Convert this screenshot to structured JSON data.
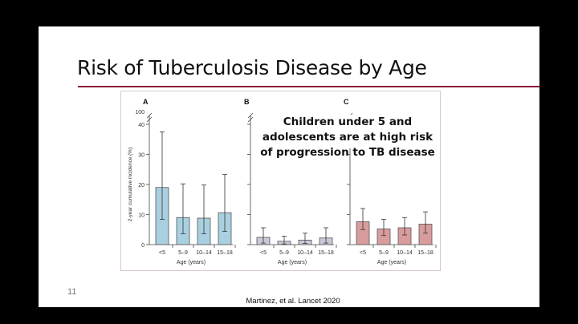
{
  "slide": {
    "title": "Risk of Tuberculosis Disease by Age",
    "callout": [
      "Children under 5 and adolescents are at high risk",
      "of progression to TB disease"
    ],
    "page_number": "11",
    "citation": "Martinez, et al. Lancet 2020",
    "accent_color": "#8b1a3a"
  },
  "chart_data": [
    {
      "type": "bar",
      "panel": "A",
      "categories": [
        "<5",
        "5–9",
        "10–14",
        "15–18"
      ],
      "values": [
        19,
        9,
        8.8,
        10.6
      ],
      "error_low": [
        8.4,
        3.6,
        3.6,
        4.4
      ],
      "error_high": [
        37.5,
        20.2,
        19.8,
        23.3
      ],
      "xlabel": "Age (years)",
      "ylabel": "2-year cumulative incidence (%)",
      "ylim": [
        0,
        40
      ],
      "yticks": [
        "0",
        "10",
        "20",
        "30",
        "40"
      ],
      "axis_break_label": "100",
      "color": "#a9d0e0"
    },
    {
      "type": "bar",
      "panel": "B",
      "categories": [
        "<5",
        "5–9",
        "10–14",
        "15–18"
      ],
      "values": [
        2.4,
        1.1,
        1.5,
        2.2
      ],
      "error_low": [
        0.5,
        0.2,
        0.4,
        0.5
      ],
      "error_high": [
        5.6,
        2.8,
        3.8,
        5.6
      ],
      "xlabel": "Age (years)",
      "ylim": [
        0,
        40
      ],
      "color": "#c9c9d8"
    },
    {
      "type": "bar",
      "panel": "C",
      "categories": [
        "<5",
        "5–9",
        "10–14",
        "15–18"
      ],
      "values": [
        7.6,
        5.2,
        5.6,
        6.8
      ],
      "error_low": [
        5,
        3,
        3.2,
        3.8
      ],
      "error_high": [
        12,
        8.4,
        9,
        10.9
      ],
      "xlabel": "Age (years)",
      "ylim": [
        0,
        40
      ],
      "color": "#d99c9c"
    }
  ]
}
